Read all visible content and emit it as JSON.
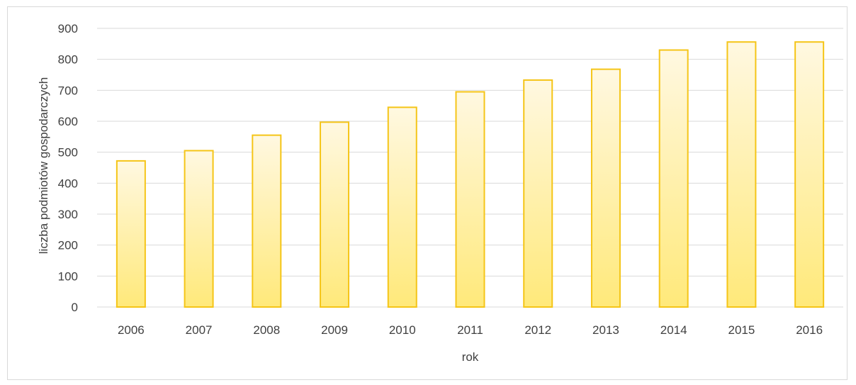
{
  "chart_data": {
    "type": "bar",
    "categories": [
      "2006",
      "2007",
      "2008",
      "2009",
      "2010",
      "2011",
      "2012",
      "2013",
      "2014",
      "2015",
      "2016"
    ],
    "values": [
      472,
      505,
      555,
      597,
      645,
      695,
      733,
      768,
      830,
      856,
      856
    ],
    "xlabel": "rok",
    "ylabel": "liczba podmiotów gospodarczych",
    "ylim": [
      0,
      900
    ],
    "yticks": [
      0,
      100,
      200,
      300,
      400,
      500,
      600,
      700,
      800,
      900
    ],
    "grid": true,
    "legend": "none",
    "colors": {
      "bar_fill_top": "#fff8e1",
      "bar_fill_bottom": "#ffe97a",
      "bar_stroke": "#f5c518",
      "grid": "#d9d9d9",
      "text": "#404040"
    }
  }
}
